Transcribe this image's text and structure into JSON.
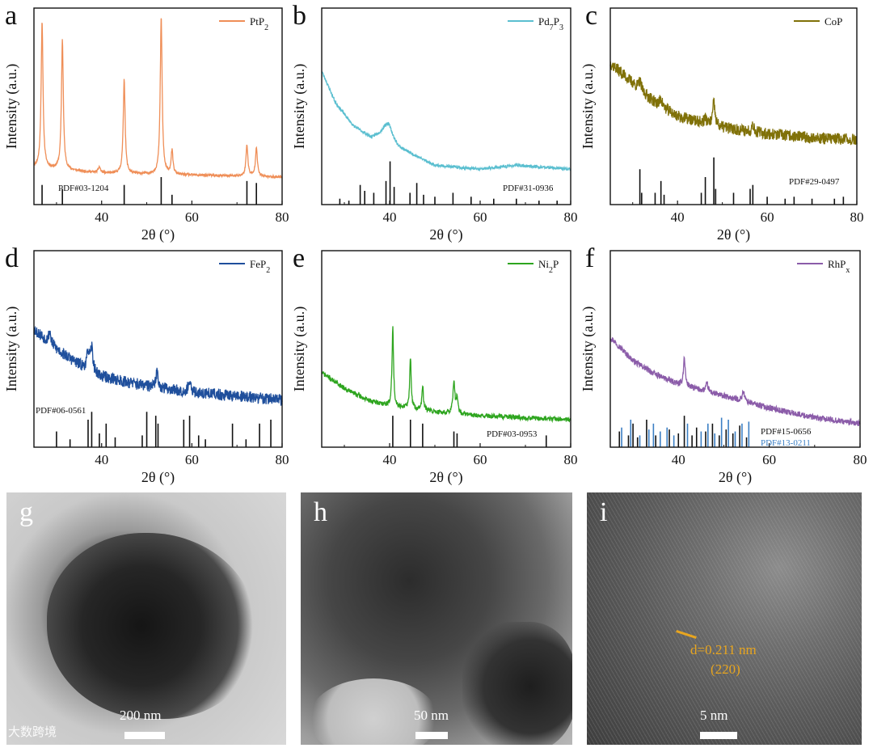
{
  "chart_data": [
    {
      "panel": "a",
      "type": "line",
      "legend": "PtP₂",
      "color": "#ef8e57",
      "pdf_labels": [
        "PDF#03-1204"
      ],
      "ref_colors": [
        "#111111"
      ],
      "xlabel": "2θ (°)",
      "ylabel": "Intensity (a.u.)",
      "xlim": [
        25,
        80
      ],
      "xticks": [
        40,
        60,
        80
      ],
      "ylim": [
        0,
        100
      ],
      "baseline": [
        [
          25,
          19
        ],
        [
          40,
          16
        ],
        [
          60,
          15
        ],
        [
          80,
          14
        ]
      ],
      "noise": 0.6,
      "seed": 11,
      "peaks": [
        [
          26.8,
          74,
          0.25
        ],
        [
          31.3,
          66,
          0.25
        ],
        [
          45.0,
          48,
          0.25
        ],
        [
          53.2,
          80,
          0.25
        ],
        [
          55.6,
          12,
          0.25
        ],
        [
          72.2,
          16,
          0.25
        ],
        [
          74.3,
          15,
          0.25
        ],
        [
          39.5,
          3,
          0.3
        ]
      ],
      "refs": [
        [
          [
            26.8,
            10
          ],
          [
            31.3,
            8
          ],
          [
            45.0,
            10
          ],
          [
            53.2,
            14
          ],
          [
            55.6,
            5
          ],
          [
            72.2,
            12
          ],
          [
            74.3,
            11
          ]
        ]
      ]
    },
    {
      "panel": "b",
      "type": "line",
      "legend": "Pd₇P₃",
      "color": "#5bbfd0",
      "pdf_labels": [
        "PDF#31-0936"
      ],
      "ref_colors": [
        "#111111"
      ],
      "xlabel": "2θ (°)",
      "ylabel": "Intensity (a.u.)",
      "xlim": [
        25,
        80
      ],
      "xticks": [
        40,
        60,
        80
      ],
      "ylim": [
        0,
        100
      ],
      "baseline": [
        [
          25,
          68
        ],
        [
          28,
          52
        ],
        [
          32,
          40
        ],
        [
          36,
          34
        ],
        [
          39,
          37
        ],
        [
          42,
          29
        ],
        [
          50,
          20
        ],
        [
          60,
          18
        ],
        [
          68,
          20
        ],
        [
          80,
          18
        ]
      ],
      "noise": 0.7,
      "seed": 23,
      "peaks": [
        [
          39.8,
          6,
          1.0
        ]
      ],
      "refs": [
        [
          [
            29,
            3
          ],
          [
            31,
            2
          ],
          [
            33.5,
            10
          ],
          [
            34.5,
            7
          ],
          [
            36.5,
            6
          ],
          [
            39.2,
            12
          ],
          [
            40.1,
            22
          ],
          [
            41,
            9
          ],
          [
            44.5,
            6
          ],
          [
            46,
            11
          ],
          [
            47.5,
            5
          ],
          [
            50,
            4
          ],
          [
            54,
            6
          ],
          [
            58,
            4
          ],
          [
            63,
            3
          ],
          [
            68,
            3
          ],
          [
            73,
            2
          ],
          [
            77,
            2
          ]
        ]
      ]
    },
    {
      "panel": "c",
      "type": "line",
      "legend": "CoP",
      "color": "#807108",
      "pdf_labels": [
        "PDF#29-0497"
      ],
      "ref_colors": [
        "#111111"
      ],
      "xlabel": "2θ (°)",
      "ylabel": "Intensity (a.u.)",
      "xlim": [
        25,
        80
      ],
      "xticks": [
        40,
        60,
        80
      ],
      "ylim": [
        0,
        100
      ],
      "baseline": [
        [
          25,
          72
        ],
        [
          30,
          62
        ],
        [
          35,
          52
        ],
        [
          40,
          45
        ],
        [
          48,
          40
        ],
        [
          60,
          36
        ],
        [
          70,
          34
        ],
        [
          80,
          33
        ]
      ],
      "noise": 3.0,
      "seed": 37,
      "peaks": [
        [
          31.6,
          4,
          0.3
        ],
        [
          36.3,
          4,
          0.3
        ],
        [
          46.2,
          3,
          0.3
        ],
        [
          48.1,
          12,
          0.3
        ],
        [
          56.8,
          4,
          0.3
        ]
      ],
      "refs": [
        [
          [
            31.6,
            18
          ],
          [
            32.0,
            6
          ],
          [
            35.0,
            6
          ],
          [
            36.3,
            12
          ],
          [
            37.0,
            5
          ],
          [
            45.3,
            6
          ],
          [
            46.2,
            14
          ],
          [
            48.1,
            24
          ],
          [
            48.5,
            8
          ],
          [
            52.5,
            6
          ],
          [
            56.2,
            8
          ],
          [
            56.8,
            10
          ],
          [
            60,
            4
          ],
          [
            64,
            3
          ],
          [
            66,
            4
          ],
          [
            70,
            3
          ],
          [
            75,
            3
          ],
          [
            77,
            4
          ]
        ]
      ]
    },
    {
      "panel": "d",
      "type": "line",
      "legend": "FeP₂",
      "color": "#1f4f9c",
      "pdf_labels": [
        "PDF#06-0561"
      ],
      "ref_colors": [
        "#111111"
      ],
      "xlabel": "2θ (°)",
      "ylabel": "Intensity (a.u.)",
      "xlim": [
        25,
        80
      ],
      "xticks": [
        40,
        60,
        80
      ],
      "ylim": [
        0,
        100
      ],
      "baseline": [
        [
          25,
          60
        ],
        [
          30,
          50
        ],
        [
          35,
          42
        ],
        [
          40,
          36
        ],
        [
          50,
          31
        ],
        [
          60,
          28
        ],
        [
          70,
          26
        ],
        [
          80,
          24
        ]
      ],
      "noise": 3.0,
      "seed": 53,
      "peaks": [
        [
          28.5,
          6,
          0.3
        ],
        [
          37.0,
          9,
          0.3
        ],
        [
          37.8,
          12,
          0.3
        ],
        [
          52.3,
          8,
          0.3
        ],
        [
          59.4,
          5,
          0.3
        ]
      ],
      "refs": [
        [
          [
            30,
            8
          ],
          [
            33,
            4
          ],
          [
            37,
            14
          ],
          [
            37.8,
            18
          ],
          [
            39.5,
            7
          ],
          [
            41,
            12
          ],
          [
            43,
            5
          ],
          [
            49,
            6
          ],
          [
            50,
            18
          ],
          [
            52,
            16
          ],
          [
            52.5,
            12
          ],
          [
            58.2,
            14
          ],
          [
            59.5,
            16
          ],
          [
            61.5,
            6
          ],
          [
            63,
            4
          ],
          [
            69,
            12
          ],
          [
            72,
            4
          ],
          [
            75,
            12
          ],
          [
            77.5,
            14
          ]
        ]
      ]
    },
    {
      "panel": "e",
      "type": "line",
      "legend": "Ni₂P",
      "color": "#2ea51f",
      "pdf_labels": [
        "PDF#03-0953"
      ],
      "ref_colors": [
        "#111111"
      ],
      "xlabel": "2θ (°)",
      "ylabel": "Intensity (a.u.)",
      "xlim": [
        25,
        80
      ],
      "xticks": [
        40,
        60,
        80
      ],
      "ylim": [
        0,
        100
      ],
      "baseline": [
        [
          25,
          38
        ],
        [
          30,
          30
        ],
        [
          35,
          24
        ],
        [
          40,
          21
        ],
        [
          50,
          18
        ],
        [
          60,
          16
        ],
        [
          70,
          15
        ],
        [
          80,
          14
        ]
      ],
      "noise": 1.2,
      "seed": 71,
      "peaks": [
        [
          40.7,
          40,
          0.2
        ],
        [
          44.6,
          26,
          0.2
        ],
        [
          47.3,
          12,
          0.2
        ],
        [
          54.2,
          16,
          0.25
        ],
        [
          54.9,
          8,
          0.2
        ]
      ],
      "refs": [
        [
          [
            40.7,
            16
          ],
          [
            44.6,
            14
          ],
          [
            47.3,
            12
          ],
          [
            54.2,
            8
          ],
          [
            54.9,
            7
          ],
          [
            74.6,
            6
          ]
        ]
      ]
    },
    {
      "panel": "f",
      "type": "line",
      "legend": "RhPₓ",
      "color": "#8b5ca9",
      "pdf_labels": [
        "PDF#15-0656",
        "PDF#13-0211"
      ],
      "ref_colors": [
        "#111111",
        "#3b7fc4"
      ],
      "xlabel": "2θ (°)",
      "ylabel": "Intensity (a.u.)",
      "xlim": [
        25,
        80
      ],
      "xticks": [
        40,
        60,
        80
      ],
      "ylim": [
        0,
        100
      ],
      "baseline": [
        [
          25,
          56
        ],
        [
          30,
          44
        ],
        [
          35,
          37
        ],
        [
          40,
          32
        ],
        [
          50,
          26
        ],
        [
          60,
          20
        ],
        [
          70,
          15
        ],
        [
          80,
          12
        ]
      ],
      "noise": 1.5,
      "seed": 97,
      "peaks": [
        [
          41.3,
          14,
          0.25
        ],
        [
          46.3,
          4,
          0.3
        ],
        [
          54.3,
          5,
          0.3
        ]
      ],
      "refs": [
        [
          [
            27,
            8
          ],
          [
            29,
            6
          ],
          [
            30,
            12
          ],
          [
            31,
            5
          ],
          [
            33,
            14
          ],
          [
            35,
            6
          ],
          [
            38,
            9
          ],
          [
            40,
            7
          ],
          [
            41.3,
            16
          ],
          [
            43,
            6
          ],
          [
            44,
            10
          ],
          [
            46,
            8
          ],
          [
            47.5,
            12
          ],
          [
            49,
            6
          ],
          [
            50.5,
            9
          ],
          [
            52,
            7
          ],
          [
            53.5,
            11
          ],
          [
            55,
            5
          ]
        ],
        [
          [
            27.5,
            10
          ],
          [
            29.5,
            14
          ],
          [
            31.5,
            6
          ],
          [
            33.5,
            9
          ],
          [
            34.5,
            12
          ],
          [
            36,
            8
          ],
          [
            37.5,
            10
          ],
          [
            39,
            6
          ],
          [
            42,
            12
          ],
          [
            45,
            8
          ],
          [
            46.5,
            12
          ],
          [
            48,
            7
          ],
          [
            49.5,
            15
          ],
          [
            51,
            14
          ],
          [
            52.5,
            8
          ],
          [
            54,
            12
          ],
          [
            55.5,
            13
          ]
        ]
      ]
    }
  ],
  "tem_panels": [
    {
      "panel": "g",
      "scale_label": "200 nm"
    },
    {
      "panel": "h",
      "scale_label": "50 nm"
    },
    {
      "panel": "i",
      "scale_label": "5 nm",
      "d_spacing": "d=0.211 nm",
      "plane": "(220)"
    }
  ],
  "watermark": "大数跨境"
}
